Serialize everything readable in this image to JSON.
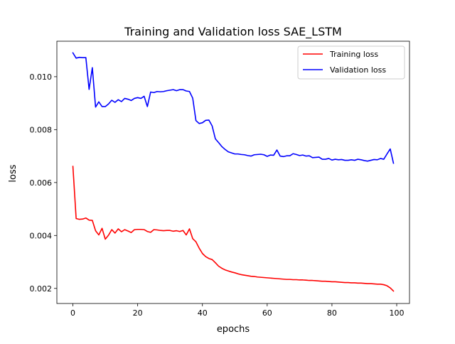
{
  "chart_data": {
    "type": "line",
    "title": "Training and Validation loss SAE_LSTM",
    "xlabel": "epochs",
    "ylabel": "loss",
    "xlim": [
      -4.95,
      103.95
    ],
    "ylim": [
      0.00143,
      0.01134
    ],
    "xticks": [
      0,
      20,
      40,
      60,
      80,
      100
    ],
    "xtick_labels": [
      "0",
      "20",
      "40",
      "60",
      "80",
      "100"
    ],
    "yticks": [
      0.002,
      0.004,
      0.006,
      0.008,
      0.01
    ],
    "ytick_labels": [
      "0.002",
      "0.004",
      "0.006",
      "0.008",
      "0.010"
    ],
    "grid": false,
    "legend_position": "upper right",
    "series": [
      {
        "name": "Training loss",
        "color": "#ff0000",
        "x": [
          0,
          1,
          2,
          3,
          4,
          5,
          6,
          7,
          8,
          9,
          10,
          11,
          12,
          13,
          14,
          15,
          16,
          17,
          18,
          19,
          20,
          21,
          22,
          23,
          24,
          25,
          26,
          27,
          28,
          29,
          30,
          31,
          32,
          33,
          34,
          35,
          36,
          37,
          38,
          39,
          40,
          41,
          42,
          43,
          44,
          45,
          46,
          47,
          48,
          49,
          50,
          51,
          52,
          53,
          54,
          55,
          56,
          57,
          58,
          59,
          60,
          61,
          62,
          63,
          64,
          65,
          66,
          67,
          68,
          69,
          70,
          71,
          72,
          73,
          74,
          75,
          76,
          77,
          78,
          79,
          80,
          81,
          82,
          83,
          84,
          85,
          86,
          87,
          88,
          89,
          90,
          91,
          92,
          93,
          94,
          95,
          96,
          97,
          98,
          99
        ],
        "values": [
          0.00661,
          0.00464,
          0.00461,
          0.00462,
          0.00466,
          0.00458,
          0.00457,
          0.00418,
          0.00402,
          0.00427,
          0.00386,
          0.00401,
          0.00422,
          0.00409,
          0.00425,
          0.00414,
          0.00422,
          0.00417,
          0.00411,
          0.00422,
          0.00423,
          0.00423,
          0.00422,
          0.00415,
          0.00412,
          0.00422,
          0.00421,
          0.00419,
          0.00418,
          0.00419,
          0.00419,
          0.00416,
          0.00418,
          0.00415,
          0.00419,
          0.00402,
          0.00425,
          0.00388,
          0.00376,
          0.00352,
          0.00332,
          0.0032,
          0.00313,
          0.00309,
          0.00297,
          0.00284,
          0.00276,
          0.0027,
          0.00266,
          0.00262,
          0.00259,
          0.00255,
          0.00252,
          0.0025,
          0.00248,
          0.00246,
          0.00245,
          0.00243,
          0.00242,
          0.00241,
          0.0024,
          0.00239,
          0.00238,
          0.00237,
          0.00236,
          0.00235,
          0.00234,
          0.00234,
          0.00233,
          0.00233,
          0.00232,
          0.00232,
          0.00231,
          0.0023,
          0.0023,
          0.00229,
          0.00228,
          0.00227,
          0.00227,
          0.00226,
          0.00225,
          0.00225,
          0.00224,
          0.00223,
          0.00222,
          0.00222,
          0.00221,
          0.00221,
          0.0022,
          0.0022,
          0.00219,
          0.00218,
          0.00218,
          0.00217,
          0.00216,
          0.00216,
          0.00214,
          0.0021,
          0.00202,
          0.0019
        ]
      },
      {
        "name": "Validation loss",
        "color": "#0000ff",
        "x": [
          0,
          1,
          2,
          3,
          4,
          5,
          6,
          7,
          8,
          9,
          10,
          11,
          12,
          13,
          14,
          15,
          16,
          17,
          18,
          19,
          20,
          21,
          22,
          23,
          24,
          25,
          26,
          27,
          28,
          29,
          30,
          31,
          32,
          33,
          34,
          35,
          36,
          37,
          38,
          39,
          40,
          41,
          42,
          43,
          44,
          45,
          46,
          47,
          48,
          49,
          50,
          51,
          52,
          53,
          54,
          55,
          56,
          57,
          58,
          59,
          60,
          61,
          62,
          63,
          64,
          65,
          66,
          67,
          68,
          69,
          70,
          71,
          72,
          73,
          74,
          75,
          76,
          77,
          78,
          79,
          80,
          81,
          82,
          83,
          84,
          85,
          86,
          87,
          88,
          89,
          90,
          91,
          92,
          93,
          94,
          95,
          96,
          97,
          98,
          99
        ],
        "values": [
          0.0109,
          0.0107,
          0.01073,
          0.01072,
          0.01072,
          0.00952,
          0.01034,
          0.00885,
          0.00905,
          0.00887,
          0.00887,
          0.00897,
          0.00911,
          0.00903,
          0.00913,
          0.00906,
          0.00918,
          0.00915,
          0.0091,
          0.00918,
          0.00921,
          0.00918,
          0.00926,
          0.00887,
          0.00942,
          0.0094,
          0.00944,
          0.00943,
          0.00944,
          0.00947,
          0.00949,
          0.00951,
          0.00947,
          0.00951,
          0.00951,
          0.00946,
          0.00944,
          0.00919,
          0.00834,
          0.00823,
          0.00826,
          0.00835,
          0.00836,
          0.00814,
          0.00765,
          0.00751,
          0.00736,
          0.00725,
          0.00716,
          0.00712,
          0.00708,
          0.00708,
          0.00706,
          0.00705,
          0.00702,
          0.007,
          0.00705,
          0.00706,
          0.00707,
          0.00705,
          0.00699,
          0.00704,
          0.00703,
          0.00723,
          0.007,
          0.00698,
          0.00701,
          0.00701,
          0.00709,
          0.00706,
          0.00702,
          0.00704,
          0.007,
          0.00701,
          0.00694,
          0.00695,
          0.00696,
          0.00688,
          0.00688,
          0.00691,
          0.00685,
          0.00688,
          0.00686,
          0.00687,
          0.00684,
          0.00684,
          0.00686,
          0.00684,
          0.00688,
          0.00686,
          0.00683,
          0.00681,
          0.00684,
          0.00687,
          0.00686,
          0.00691,
          0.00688,
          0.00708,
          0.00727,
          0.00673
        ]
      }
    ]
  }
}
